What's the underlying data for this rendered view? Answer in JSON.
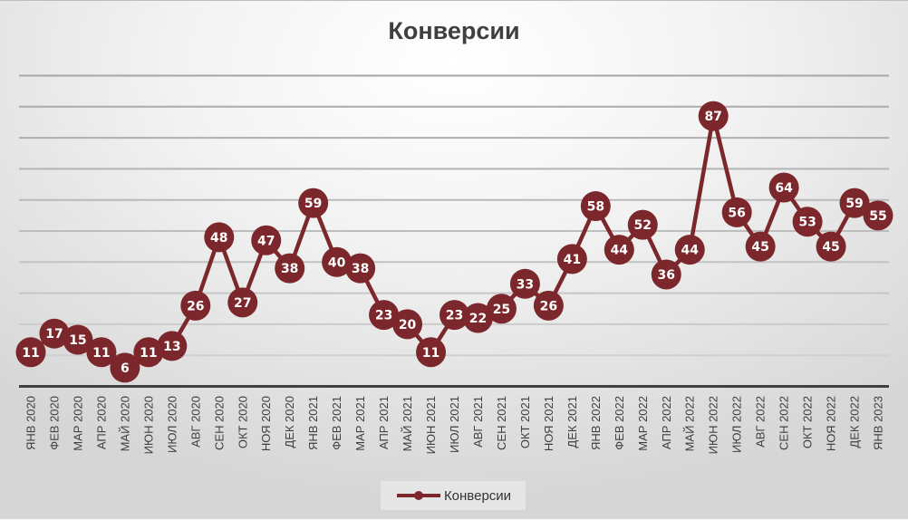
{
  "chart": {
    "title": "Конверсии",
    "legend_label": "Конверсии",
    "series_color": "#7b272b"
  },
  "chart_data": {
    "type": "line",
    "title": "Конверсии",
    "xlabel": "",
    "ylabel": "",
    "ylim": [
      0,
      100
    ],
    "y_gridlines": [
      10,
      20,
      30,
      40,
      50,
      60,
      70,
      80,
      90,
      100
    ],
    "grid": true,
    "y_tick_labels_visible": false,
    "legend_position": "bottom",
    "categories": [
      "ЯНВ 2020",
      "ФЕВ 2020",
      "МАР 2020",
      "АПР 2020",
      "МАЙ 2020",
      "ИЮН 2020",
      "ИЮЛ 2020",
      "АВГ 2020",
      "СЕН 2020",
      "ОКТ 2020",
      "НОЯ 2020",
      "ДЕК 2020",
      "ЯНВ 2021",
      "ФЕВ 2021",
      "МАР 2021",
      "АПР 2021",
      "МАЙ 2021",
      "ИЮН 2021",
      "ИЮЛ 2021",
      "АВГ 2021",
      "СЕН 2021",
      "ОКТ 2021",
      "НОЯ 2021",
      "ДЕК 2021",
      "ЯНВ 2022",
      "ФЕВ 2022",
      "МАР 2022",
      "АПР 2022",
      "МАЙ 2022",
      "ИЮН 2022",
      "ИЮЛ 2022",
      "АВГ 2022",
      "СЕН 2022",
      "ОКТ 2022",
      "НОЯ 2022",
      "ДЕК 2022",
      "ЯНВ 2023"
    ],
    "series": [
      {
        "name": "Конверсии",
        "color": "#7b272b",
        "values": [
          11,
          17,
          15,
          11,
          6,
          11,
          13,
          26,
          48,
          27,
          47,
          38,
          59,
          40,
          38,
          23,
          20,
          11,
          23,
          22,
          25,
          33,
          26,
          41,
          58,
          44,
          52,
          36,
          44,
          87,
          56,
          45,
          64,
          53,
          45,
          59,
          55
        ]
      }
    ]
  }
}
